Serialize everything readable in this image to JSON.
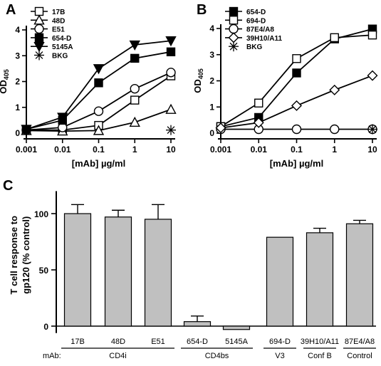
{
  "chart_data": [
    {
      "panel": "A",
      "type": "line",
      "xscale": "log",
      "x": [
        0.001,
        0.01,
        0.1,
        1,
        10
      ],
      "x_ticks": [
        "0.001",
        "0.01",
        "0.1",
        "1",
        "10"
      ],
      "xlabel_main": "[mAb]",
      "xlabel_unit": "µg/ml",
      "ylabel_main": "OD",
      "ylabel_sub": "405",
      "ylim": [
        0,
        4
      ],
      "y_ticks": [
        "0",
        "1",
        "2",
        "3",
        "4"
      ],
      "series": [
        {
          "name": "17B",
          "marker": "open-square",
          "values": [
            0.12,
            0.12,
            0.3,
            1.28,
            2.22
          ]
        },
        {
          "name": "48D",
          "marker": "open-triangle",
          "values": [
            0.1,
            0.08,
            0.1,
            0.42,
            0.92
          ]
        },
        {
          "name": "E51",
          "marker": "open-circle",
          "values": [
            0.12,
            0.22,
            0.85,
            1.72,
            2.35
          ]
        },
        {
          "name": "654-D",
          "marker": "filled-square",
          "values": [
            0.15,
            0.5,
            1.95,
            2.9,
            3.15
          ]
        },
        {
          "name": "5145A",
          "marker": "filled-triangle-down",
          "values": [
            0.15,
            0.62,
            2.5,
            3.42,
            3.58
          ]
        },
        {
          "name": "BKG",
          "marker": "asterisk",
          "values": [
            null,
            null,
            null,
            null,
            0.12
          ]
        }
      ],
      "legend": "top-left"
    },
    {
      "panel": "B",
      "type": "line",
      "xscale": "log",
      "x": [
        0.001,
        0.01,
        0.1,
        1,
        10
      ],
      "x_ticks": [
        "0.001",
        "0.01",
        "0.1",
        "1",
        "10"
      ],
      "xlabel_main": "[mAb]",
      "xlabel_unit": "µg/ml",
      "ylabel_main": "OD",
      "ylabel_sub": "405",
      "ylim": [
        0,
        4
      ],
      "y_ticks": [
        "0",
        "1",
        "2",
        "3",
        "4"
      ],
      "series": [
        {
          "name": "654-D",
          "marker": "filled-square",
          "values": [
            0.25,
            0.6,
            2.3,
            3.6,
            3.98
          ]
        },
        {
          "name": "694-D",
          "marker": "open-square",
          "values": [
            0.25,
            1.15,
            2.85,
            3.65,
            3.75
          ]
        },
        {
          "name": "87E4/A8",
          "marker": "open-circle",
          "values": [
            0.15,
            0.15,
            0.15,
            0.15,
            0.15
          ]
        },
        {
          "name": "39H10/A11",
          "marker": "open-diamond",
          "values": [
            0.2,
            0.4,
            1.05,
            1.65,
            2.2
          ]
        },
        {
          "name": "BKG",
          "marker": "asterisk",
          "values": [
            null,
            null,
            null,
            null,
            0.15
          ]
        }
      ],
      "legend": "top-left"
    },
    {
      "panel": "C",
      "type": "bar",
      "ylabel_line1": "T cell response to",
      "ylabel_line2": "gp120 (% control)",
      "ylim": [
        -3,
        120
      ],
      "y_ticks": [
        "0",
        "50",
        "100"
      ],
      "prefix_label": "mAb:",
      "categories": [
        "17B",
        "48D",
        "E51",
        "654-D",
        "5145A",
        "694-D",
        "39H10/A11",
        "87E4/A8"
      ],
      "values": [
        100,
        97,
        95,
        4,
        -3,
        79,
        83,
        91
      ],
      "errors": [
        8,
        6,
        13,
        5,
        0,
        0,
        4,
        3
      ],
      "groups": [
        {
          "label": "CD4i",
          "from": 0,
          "to": 2
        },
        {
          "label": "CD4bs",
          "from": 3,
          "to": 4
        },
        {
          "label": "V3",
          "from": 5,
          "to": 5
        },
        {
          "label": "Conf B",
          "from": 6,
          "to": 6
        },
        {
          "label": "Control",
          "from": 7,
          "to": 7
        }
      ],
      "bar_color": "#c0c0c0"
    }
  ]
}
